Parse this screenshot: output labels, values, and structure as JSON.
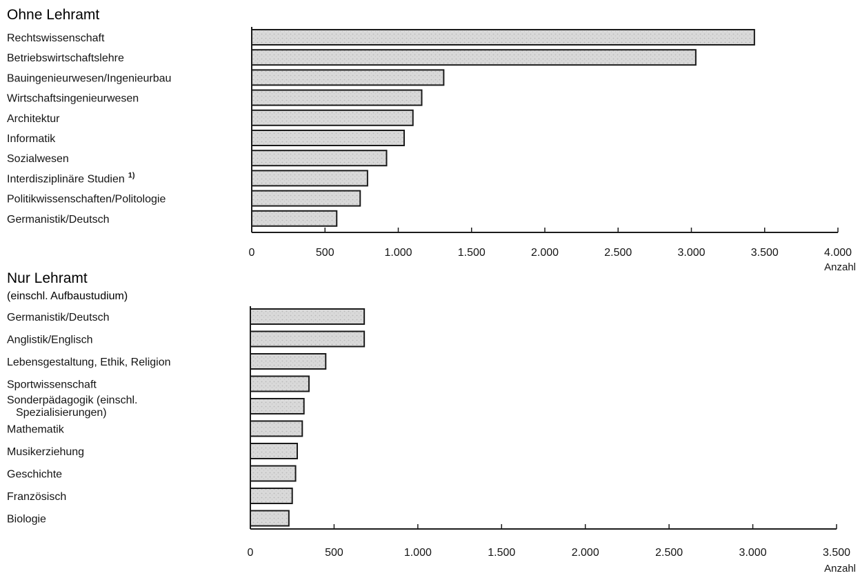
{
  "colors": {
    "bar_fill": "#d9d9d9",
    "bar_stroke": "#1a1a1a",
    "axis": "#1a1a1a",
    "text": "#141414"
  },
  "chart_data": [
    {
      "type": "bar",
      "orientation": "horizontal",
      "title": "Ohne Lehramt",
      "subtitle": "",
      "xlabel": "Anzahl",
      "xlim": [
        0,
        4000
      ],
      "xticks": [
        0,
        500,
        1000,
        1500,
        2000,
        2500,
        3000,
        3500,
        4000
      ],
      "xtick_labels": [
        "0",
        "500",
        "1.000",
        "1.500",
        "2.000",
        "2.500",
        "3.000",
        "3.500",
        "4.000"
      ],
      "categories": [
        "Rechtswissenschaft",
        "Betriebswirtschaftslehre",
        "Bauingenieurwesen/Ingenieurbau",
        "Wirtschaftsingenieurwesen",
        "Architektur",
        "Informatik",
        "Sozialwesen",
        "Interdisziplinäre Studien",
        "Politikwissenschaften/Politologie",
        "Germanistik/Deutsch"
      ],
      "footnote_marks": {
        "7": "1)"
      },
      "values": [
        3430,
        3030,
        1310,
        1160,
        1100,
        1040,
        920,
        790,
        740,
        580
      ]
    },
    {
      "type": "bar",
      "orientation": "horizontal",
      "title": "Nur Lehramt",
      "subtitle": "(einschl. Aufbaustudium)",
      "xlabel": "Anzahl",
      "xlim": [
        0,
        3500
      ],
      "xticks": [
        0,
        500,
        1000,
        1500,
        2000,
        2500,
        3000,
        3500
      ],
      "xtick_labels": [
        "0",
        "500",
        "1.000",
        "1.500",
        "2.000",
        "2.500",
        "3.000",
        "3.500"
      ],
      "categories": [
        "Germanistik/Deutsch",
        "Anglistik/Englisch",
        "Lebensgestaltung, Ethik, Religion",
        "Sportwissenschaft",
        "Sonderpädagogik (einschl. Spezialisierungen)",
        "Mathematik",
        "Musikerziehung",
        "Geschichte",
        "Französisch",
        "Biologie"
      ],
      "category_lines": {
        "4": [
          "Sonderpädagogik (einschl.",
          "Spezialisierungen)"
        ]
      },
      "values": [
        680,
        680,
        450,
        350,
        320,
        310,
        280,
        270,
        250,
        230
      ]
    }
  ]
}
